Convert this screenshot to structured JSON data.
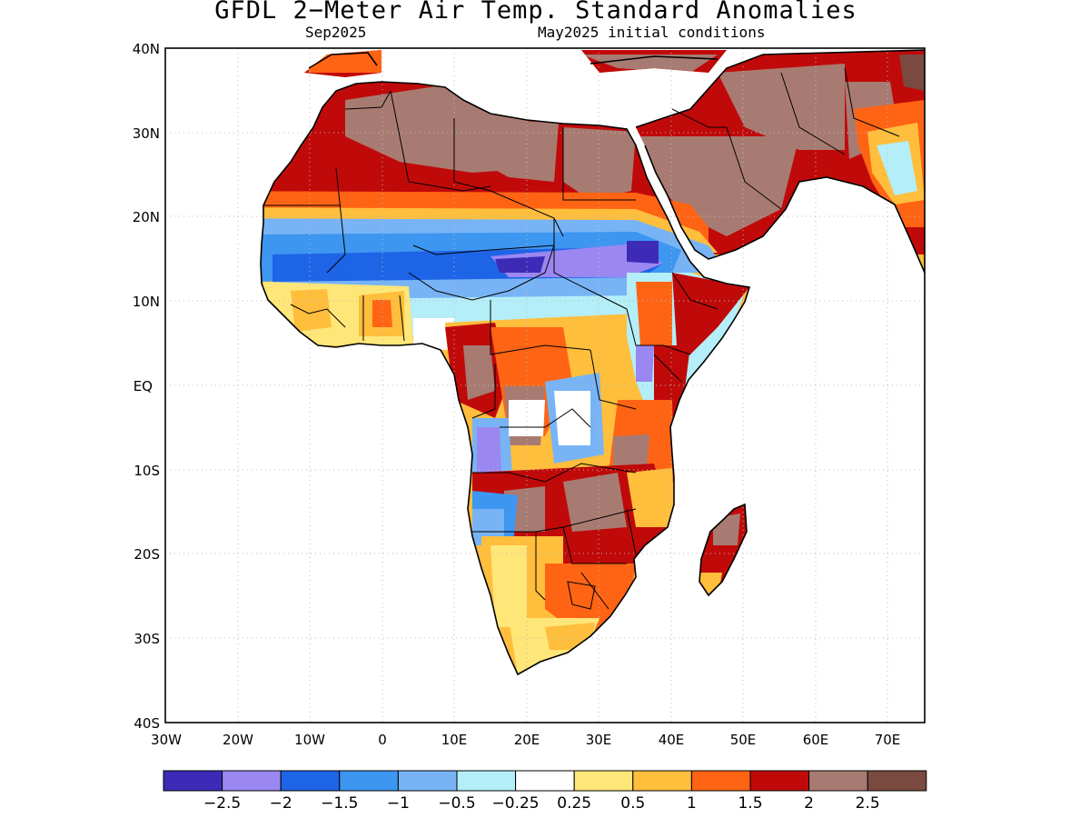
{
  "header": {
    "title": "GFDL 2−Meter Air Temp. Standard Anomalies",
    "subtitle_left": "Sep2025",
    "subtitle_right": "May2025 initial conditions"
  },
  "axes": {
    "lat_labels": [
      "40N",
      "30N",
      "20N",
      "10N",
      "EQ",
      "10S",
      "20S",
      "30S",
      "40S"
    ],
    "lon_labels": [
      "30W",
      "20W",
      "10W",
      "0",
      "10E",
      "20E",
      "30E",
      "40E",
      "50E",
      "60E",
      "70E"
    ]
  },
  "colorbar": {
    "labels": [
      "−2.5",
      "−2",
      "−1.5",
      "−1",
      "−0.5",
      "−0.25",
      "0.25",
      "0.5",
      "1",
      "1.5",
      "2",
      "2.5"
    ],
    "colors": [
      "#3d2bb8",
      "#9b87f0",
      "#1e64e6",
      "#3d96f0",
      "#78b4f5",
      "#b4eef8",
      "#ffffff",
      "#ffe678",
      "#ffbe3c",
      "#ff6414",
      "#c00a0a",
      "#a87b72",
      "#7a4a40"
    ]
  },
  "map_colors": {
    "brown": "#a87b72",
    "dark_brown": "#7a4a40",
    "dark_red": "#c00a0a",
    "orange_red": "#ff6414",
    "orange": "#ffbe3c",
    "yellow": "#ffe678",
    "light_cyan": "#b4eef8",
    "light_blue": "#78b4f5",
    "blue": "#3d96f0",
    "mid_blue": "#1e64e6",
    "lavender": "#9b87f0",
    "purple": "#3d2bb8"
  }
}
